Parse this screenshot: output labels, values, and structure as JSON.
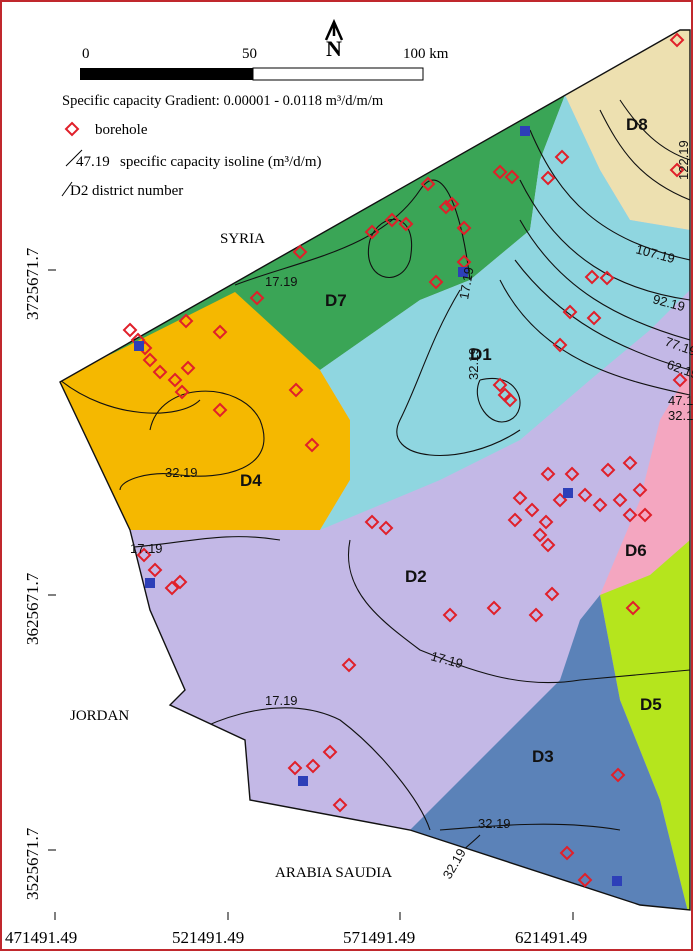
{
  "scale_bar": {
    "ticks": [
      "0",
      "50",
      "100 km"
    ]
  },
  "north_label": "N",
  "legend": {
    "gradient": "Specific capacity Gradient: 0.00001 - 0.0118 m³/d/m/m",
    "borehole": "borehole",
    "isoline_value": "47.19",
    "isoline": "specific capacity isoline (m³/d/m)",
    "district_sample": "D2",
    "district": "district number"
  },
  "countries": [
    "SYRIA",
    "JORDAN",
    "ARABIA SAUDIA"
  ],
  "districts": [
    "D8",
    "D7",
    "D1",
    "D4",
    "D2",
    "D6",
    "D5",
    "D3"
  ],
  "isoline_labels": [
    "17.19",
    "17.19",
    "32.19",
    "107.19",
    "92.19",
    "77.19",
    "62.19",
    "47.19",
    "32.19",
    "122.19",
    "32.19",
    "17.19",
    "17.19",
    "17.19",
    "32.19",
    "32.19"
  ],
  "x_axis": {
    "ticks": [
      "471491.49",
      "521491.49",
      "571491.49",
      "621491.49"
    ]
  },
  "y_axis": {
    "ticks": [
      "3725671.7",
      "3625671.7",
      "3525671.7"
    ]
  }
}
